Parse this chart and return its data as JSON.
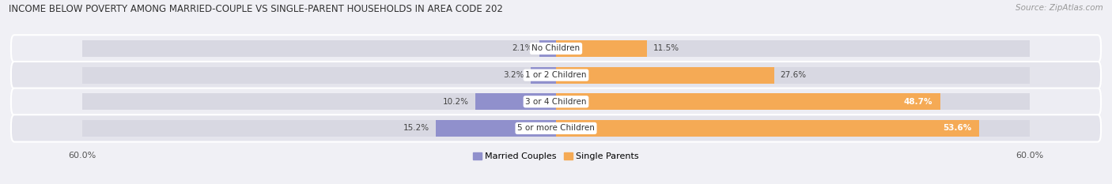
{
  "title": "INCOME BELOW POVERTY AMONG MARRIED-COUPLE VS SINGLE-PARENT HOUSEHOLDS IN AREA CODE 202",
  "source": "Source: ZipAtlas.com",
  "categories": [
    "No Children",
    "1 or 2 Children",
    "3 or 4 Children",
    "5 or more Children"
  ],
  "married_values": [
    2.1,
    3.2,
    10.2,
    15.2
  ],
  "single_values": [
    11.5,
    27.6,
    48.7,
    53.6
  ],
  "married_color": "#9090cc",
  "single_color": "#f5aa55",
  "row_bg_light": "#ededf3",
  "row_bg_dark": "#e4e4ec",
  "bar_bg_color": "#d8d8e2",
  "axis_max": 60.0,
  "axis_label": "60.0%",
  "title_fontsize": 8.5,
  "source_fontsize": 7.5,
  "tick_fontsize": 8,
  "bar_label_fontsize": 7.5,
  "category_fontsize": 7.5,
  "legend_fontsize": 8,
  "bar_height": 0.62,
  "figsize": [
    14.06,
    2.33
  ],
  "dpi": 100,
  "inside_label_threshold": 35
}
